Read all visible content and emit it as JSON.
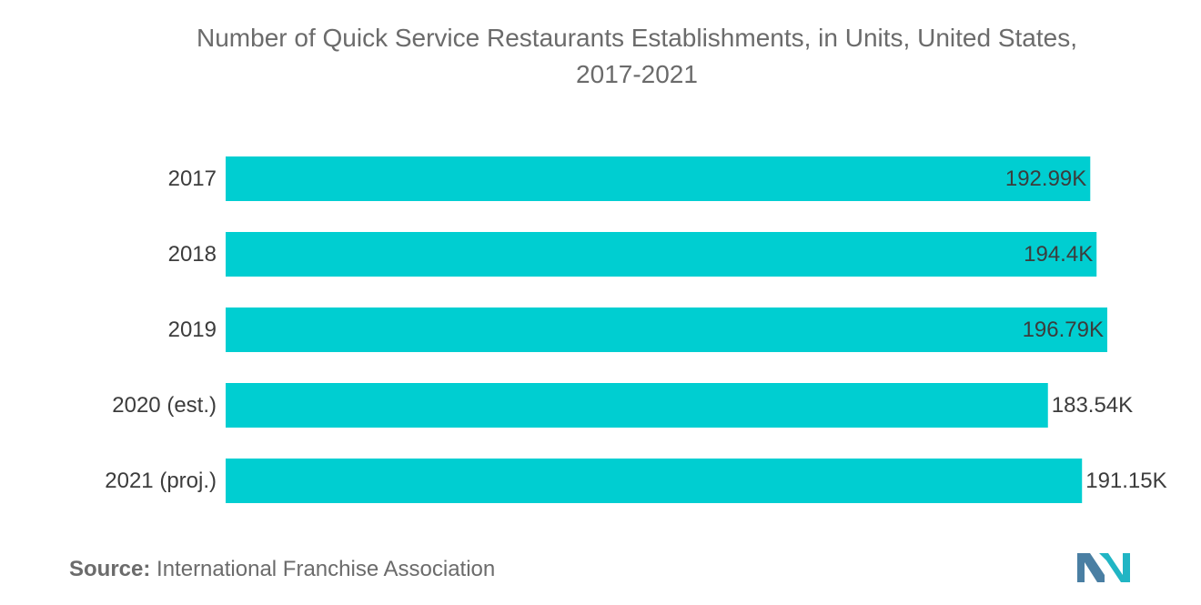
{
  "chart_data": {
    "type": "bar",
    "orientation": "horizontal",
    "title_lines": [
      "Number of Quick Service Restaurants Establishments, in Units, United States,",
      "2017-2021"
    ],
    "categories": [
      "2017",
      "2018",
      "2019",
      "2020 (est.)",
      "2021 (proj.)"
    ],
    "values": [
      192.99,
      194.4,
      196.79,
      183.54,
      191.15
    ],
    "value_labels": [
      "192.99K",
      "194.4K",
      "196.79K",
      "183.54K",
      "191.15K"
    ],
    "unit": "K",
    "xlim": [
      0,
      196.79
    ],
    "grid": false,
    "legend": "none",
    "bar_color": "#00CED1"
  },
  "source": {
    "label": "Source:",
    "text": "International Franchise Association"
  },
  "logo": {
    "colors": [
      "#4a7fa3",
      "#21b5c4"
    ]
  }
}
